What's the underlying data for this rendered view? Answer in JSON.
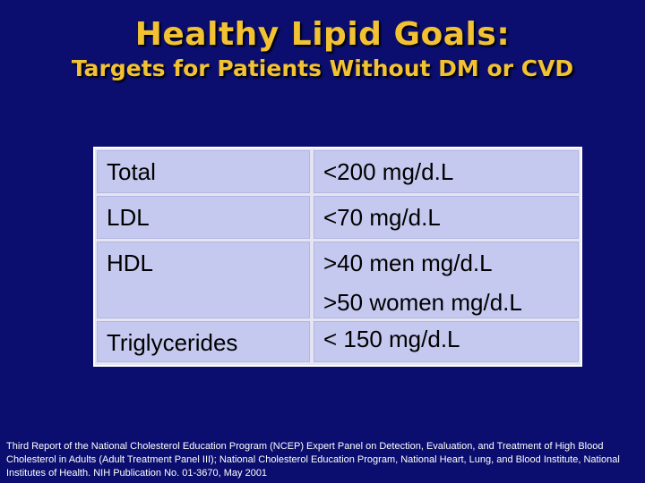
{
  "title": {
    "main": "Healthy Lipid Goals:",
    "sub": "Targets for Patients Without DM or CVD"
  },
  "table": {
    "rows": [
      {
        "label": "Total",
        "values": [
          "<200 mg/d.L"
        ]
      },
      {
        "label": "LDL",
        "values": [
          "<70 mg/d.L"
        ]
      },
      {
        "label": "HDL",
        "values": [
          ">40 men mg/d.L",
          ">50 women mg/d.L"
        ]
      },
      {
        "label": "Triglycerides",
        "values": [
          "< 150 mg/d.L"
        ]
      }
    ]
  },
  "footnote": "Third Report of the National Cholesterol Education Program (NCEP) Expert Panel on Detection, Evaluation, and Treatment of High Blood Cholesterol in Adults (Adult Treatment Panel III); National Cholesterol Education Program, National Heart, Lung, and Blood Institute, National Institutes of Health. NIH Publication No. 01-3670, May 2001",
  "colors": {
    "background": "#0b0e6e",
    "title": "#f2c233",
    "cell": "#c6c9ef"
  }
}
